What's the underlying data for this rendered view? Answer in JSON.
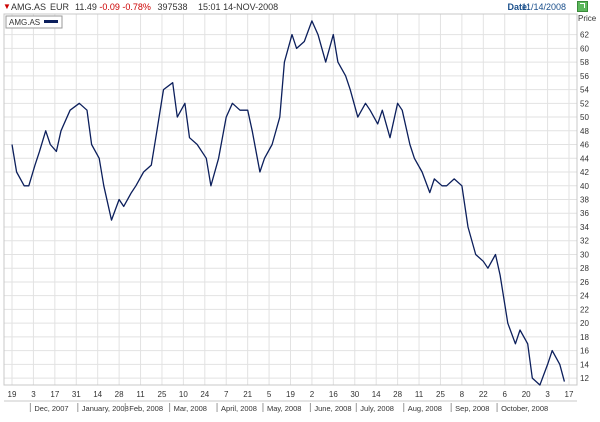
{
  "header": {
    "symbol": "AMG.AS",
    "currency": "EUR",
    "last": "11.49",
    "change": "-0.09",
    "change_pct": "-0.78%",
    "volume": "397538",
    "time": "15:01",
    "date": "14-NOV-2008",
    "date_label": "Date:",
    "date_value": "11/14/2008",
    "change_color": "#cc0000"
  },
  "chart_data": {
    "type": "line",
    "title": "",
    "xlabel": "",
    "ylabel": "Price",
    "ylim": [
      11,
      65
    ],
    "yticks": [
      12,
      14,
      16,
      18,
      20,
      22,
      24,
      26,
      28,
      30,
      32,
      34,
      36,
      38,
      40,
      42,
      44,
      46,
      48,
      50,
      52,
      54,
      56,
      58,
      60,
      62
    ],
    "day_ticks": [
      "19",
      "3",
      "17",
      "31",
      "14",
      "28",
      "11",
      "25",
      "10",
      "24",
      "7",
      "21",
      "5",
      "19",
      "2",
      "16",
      "30",
      "14",
      "28",
      "11",
      "25",
      "8",
      "22",
      "6",
      "20",
      "3",
      "17"
    ],
    "month_labels": [
      "Dec, 2007",
      "January, 2008",
      "Feb, 2008",
      "Mar, 2008",
      "April, 2008",
      "May, 2008",
      "June, 2008",
      "July, 2008",
      "Aug, 2008",
      "Sep, 2008",
      "October, 2008"
    ],
    "x_range": [
      "2007-11-19",
      "2008-11-17"
    ],
    "grid": true,
    "legend": {
      "position": "top-left",
      "entries": [
        "AMG.AS"
      ]
    },
    "series": [
      {
        "name": "AMG.AS",
        "color": "#0c1f5c",
        "x": [
          "2007-11-19",
          "2007-11-22",
          "2007-11-27",
          "2007-11-30",
          "2007-12-04",
          "2007-12-07",
          "2007-12-11",
          "2007-12-14",
          "2007-12-18",
          "2007-12-21",
          "2007-12-27",
          "2008-01-02",
          "2008-01-07",
          "2008-01-10",
          "2008-01-15",
          "2008-01-18",
          "2008-01-23",
          "2008-01-28",
          "2008-01-31",
          "2008-02-05",
          "2008-02-08",
          "2008-02-13",
          "2008-02-18",
          "2008-02-21",
          "2008-02-26",
          "2008-03-03",
          "2008-03-06",
          "2008-03-11",
          "2008-03-14",
          "2008-03-19",
          "2008-03-25",
          "2008-03-28",
          "2008-04-02",
          "2008-04-07",
          "2008-04-11",
          "2008-04-16",
          "2008-04-21",
          "2008-04-24",
          "2008-04-29",
          "2008-05-02",
          "2008-05-07",
          "2008-05-12",
          "2008-05-15",
          "2008-05-20",
          "2008-05-23",
          "2008-05-28",
          "2008-06-02",
          "2008-06-06",
          "2008-06-11",
          "2008-06-16",
          "2008-06-19",
          "2008-06-24",
          "2008-06-27",
          "2008-07-02",
          "2008-07-07",
          "2008-07-10",
          "2008-07-15",
          "2008-07-18",
          "2008-07-23",
          "2008-07-28",
          "2008-07-31",
          "2008-08-05",
          "2008-08-08",
          "2008-08-13",
          "2008-08-18",
          "2008-08-21",
          "2008-08-26",
          "2008-08-29",
          "2008-09-03",
          "2008-09-08",
          "2008-09-12",
          "2008-09-17",
          "2008-09-22",
          "2008-09-25",
          "2008-09-30",
          "2008-10-03",
          "2008-10-08",
          "2008-10-13",
          "2008-10-16",
          "2008-10-21",
          "2008-10-24",
          "2008-10-29",
          "2008-11-03",
          "2008-11-06",
          "2008-11-11",
          "2008-11-14"
        ],
        "values": [
          46,
          42,
          40,
          40,
          43,
          45,
          48,
          46,
          45,
          48,
          51,
          52,
          51,
          46,
          44,
          40,
          35,
          38,
          37,
          39,
          40,
          42,
          43,
          47,
          54,
          55,
          50,
          52,
          47,
          46,
          44,
          40,
          44,
          50,
          52,
          51,
          51,
          48,
          42,
          44,
          46,
          50,
          58,
          62,
          60,
          61,
          64,
          62,
          58,
          62,
          58,
          56,
          54,
          50,
          52,
          51,
          49,
          51,
          47,
          52,
          51,
          46,
          44,
          42,
          39,
          41,
          40,
          40,
          41,
          40,
          34,
          30,
          29,
          28,
          30,
          27,
          20,
          17,
          19,
          17,
          12,
          11,
          14,
          16,
          14,
          11.5
        ]
      }
    ]
  }
}
